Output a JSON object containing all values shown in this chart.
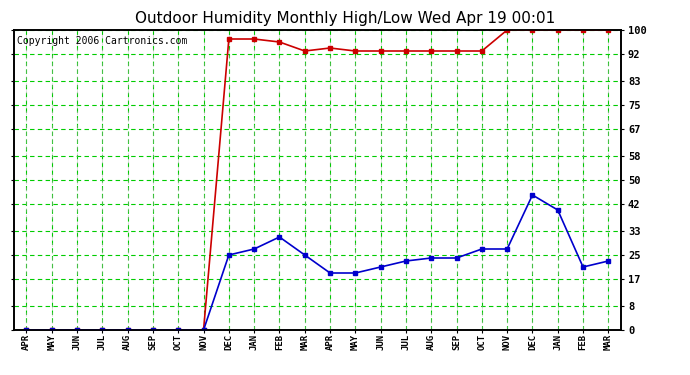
{
  "title": "Outdoor Humidity Monthly High/Low Wed Apr 19 00:01",
  "copyright": "Copyright 2006 Cartronics.com",
  "x_labels": [
    "APR",
    "MAY",
    "JUN",
    "JUL",
    "AUG",
    "SEP",
    "OCT",
    "NOV",
    "DEC",
    "JAN",
    "FEB",
    "MAR",
    "APR",
    "MAY",
    "JUN",
    "JUL",
    "AUG",
    "SEP",
    "OCT",
    "NOV",
    "DEC",
    "JAN",
    "FEB",
    "MAR"
  ],
  "high_values": [
    0,
    0,
    0,
    0,
    0,
    0,
    0,
    0,
    97,
    97,
    96,
    93,
    94,
    93,
    93,
    93,
    93,
    93,
    93,
    100,
    100,
    100,
    100,
    100
  ],
  "low_values": [
    0,
    0,
    0,
    0,
    0,
    0,
    0,
    0,
    25,
    27,
    31,
    25,
    19,
    19,
    21,
    23,
    24,
    24,
    27,
    27,
    45,
    40,
    21,
    23
  ],
  "y_ticks": [
    0,
    8,
    17,
    25,
    33,
    42,
    50,
    58,
    67,
    75,
    83,
    92,
    100
  ],
  "y_min": 0,
  "y_max": 100,
  "high_color": "#cc0000",
  "low_color": "#0000cc",
  "bg_color": "#ffffff",
  "grid_color_green": "#00cc00",
  "grid_color_gray": "#aaaaaa",
  "title_fontsize": 11,
  "copyright_fontsize": 7,
  "marker_size": 3,
  "line_width": 1.2
}
